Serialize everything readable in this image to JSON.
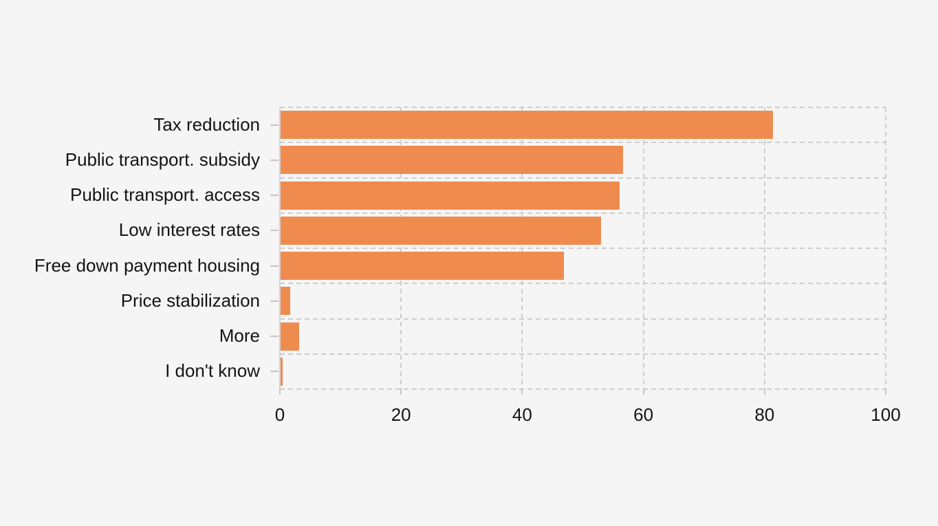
{
  "figure": {
    "background_color": "#f5f5f5"
  },
  "chart_data": {
    "type": "bar",
    "orientation": "horizontal",
    "title": "",
    "xlabel": "",
    "ylabel": "",
    "categories": [
      "Tax reduction",
      "Public transport. subsidy",
      "Public transport. access",
      "Low interest rates",
      "Free down payment housing",
      "Price stabilization",
      "More",
      "I don't know"
    ],
    "values": [
      81.4,
      56.6,
      56.1,
      53.0,
      46.9,
      1.7,
      3.2,
      0.45
    ],
    "xlim": [
      0,
      100
    ],
    "xticks": [
      0,
      20,
      40,
      60,
      80,
      100
    ],
    "xtick_labels": [
      "0",
      "20",
      "40",
      "60",
      "80",
      "100"
    ],
    "grid": "dashed",
    "legend": false,
    "bar_color": "#F08B4F",
    "grid_color": "#cdcdcd",
    "spine_color": "#d2d2d2",
    "tick_color": "#c4c4c4",
    "text_color": "#141414"
  },
  "layout_note": ""
}
